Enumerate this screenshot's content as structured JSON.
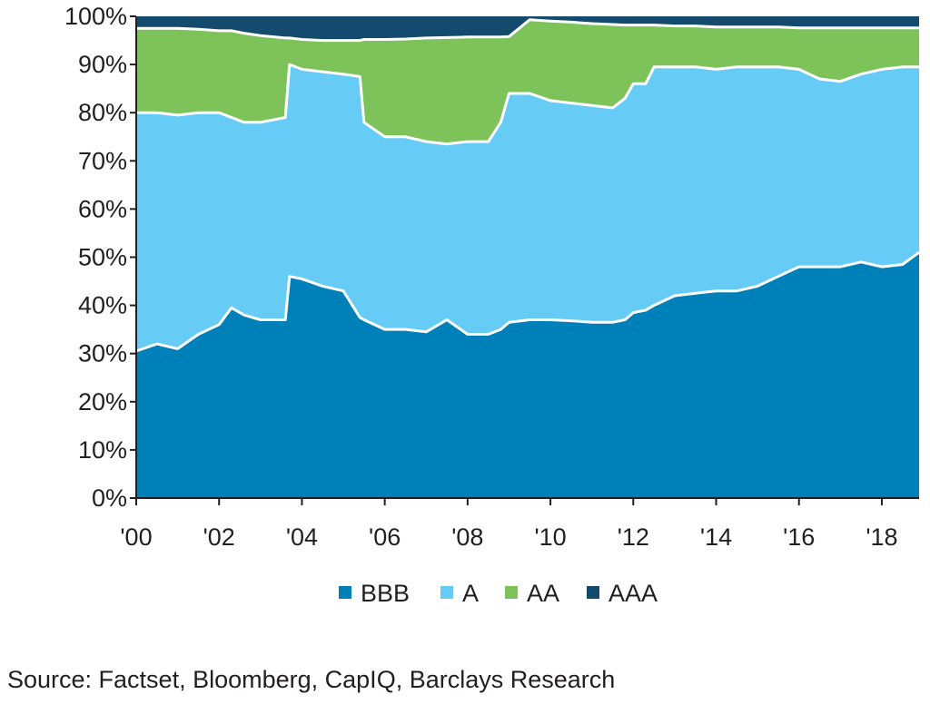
{
  "chart_data": {
    "type": "area",
    "stacked": true,
    "normalized": true,
    "title": "",
    "xlabel": "",
    "ylabel": "",
    "ylim": [
      0,
      100
    ],
    "xlim": [
      2000,
      2018.9
    ],
    "grid": false,
    "legend_position": "bottom",
    "x_ticks": [
      2000,
      2002,
      2004,
      2006,
      2008,
      2010,
      2012,
      2014,
      2016,
      2018
    ],
    "x_tick_labels": [
      "'00",
      "'02",
      "'04",
      "'06",
      "'08",
      "'10",
      "'12",
      "'14",
      "'16",
      "'18"
    ],
    "y_ticks": [
      0,
      10,
      20,
      30,
      40,
      50,
      60,
      70,
      80,
      90,
      100
    ],
    "y_tick_labels": [
      "0%",
      "10%",
      "20%",
      "30%",
      "40%",
      "50%",
      "60%",
      "70%",
      "80%",
      "90%",
      "100%"
    ],
    "x": [
      2000,
      2000.5,
      2001,
      2001.5,
      2002,
      2002.3,
      2002.6,
      2003,
      2003.6,
      2003.7,
      2004,
      2004.5,
      2005,
      2005.4,
      2005.5,
      2006,
      2006.5,
      2007,
      2007.5,
      2008,
      2008.5,
      2008.8,
      2009,
      2009.5,
      2010,
      2010.5,
      2011,
      2011.5,
      2011.8,
      2012,
      2012.3,
      2012.5,
      2013,
      2013.5,
      2014,
      2014.5,
      2015,
      2015.5,
      2016,
      2016.5,
      2017,
      2017.5,
      2018,
      2018.5,
      2018.9
    ],
    "series": [
      {
        "name": "BBB",
        "color": "#0080b9",
        "values": [
          30.5,
          32,
          31,
          34,
          36,
          39.5,
          38,
          37,
          37,
          46,
          45.5,
          44,
          43,
          37.5,
          37,
          35,
          35,
          34.5,
          37,
          34,
          34,
          35,
          36.5,
          37,
          37,
          36.8,
          36.5,
          36.5,
          37,
          38.5,
          39,
          40,
          42,
          42.5,
          43,
          43,
          44,
          46,
          48,
          48,
          48,
          49,
          48,
          48.5,
          51
        ]
      },
      {
        "name": "A",
        "color": "#66ccf5",
        "values": [
          80,
          80,
          79.5,
          80,
          80,
          79,
          78,
          78,
          79,
          90,
          89,
          88.5,
          88,
          87.5,
          78,
          75,
          75,
          74,
          73.5,
          74,
          74,
          78,
          84,
          84,
          82.5,
          82,
          81.5,
          81,
          83,
          86,
          86,
          89.5,
          89.5,
          89.5,
          89,
          89.5,
          89.5,
          89.5,
          89,
          87,
          86.5,
          88,
          89,
          89.5,
          89.5
        ]
      },
      {
        "name": "AA",
        "color": "#7dc35a",
        "values": [
          97.5,
          97.5,
          97.5,
          97.3,
          97,
          97,
          96.5,
          96,
          95.5,
          95.5,
          95.2,
          95,
          95,
          95,
          95.2,
          95.2,
          95.3,
          95.5,
          95.6,
          95.7,
          95.7,
          95.7,
          95.8,
          99.3,
          99,
          98.8,
          98.5,
          98.3,
          98.2,
          98.2,
          98.2,
          98.2,
          98,
          98,
          97.8,
          97.8,
          97.8,
          97.8,
          97.6,
          97.6,
          97.6,
          97.6,
          97.6,
          97.6,
          97.6
        ]
      },
      {
        "name": "AAA",
        "color": "#144a6d",
        "values": [
          100,
          100,
          100,
          100,
          100,
          100,
          100,
          100,
          100,
          100,
          100,
          100,
          100,
          100,
          100,
          100,
          100,
          100,
          100,
          100,
          100,
          100,
          100,
          100,
          100,
          100,
          100,
          100,
          100,
          100,
          100,
          100,
          100,
          100,
          100,
          100,
          100,
          100,
          100,
          100,
          100,
          100,
          100,
          100,
          100
        ]
      }
    ],
    "legend": [
      "BBB",
      "A",
      "AA",
      "AAA"
    ],
    "source": "Source: Factset, Bloomberg, CapIQ, Barclays Research"
  }
}
